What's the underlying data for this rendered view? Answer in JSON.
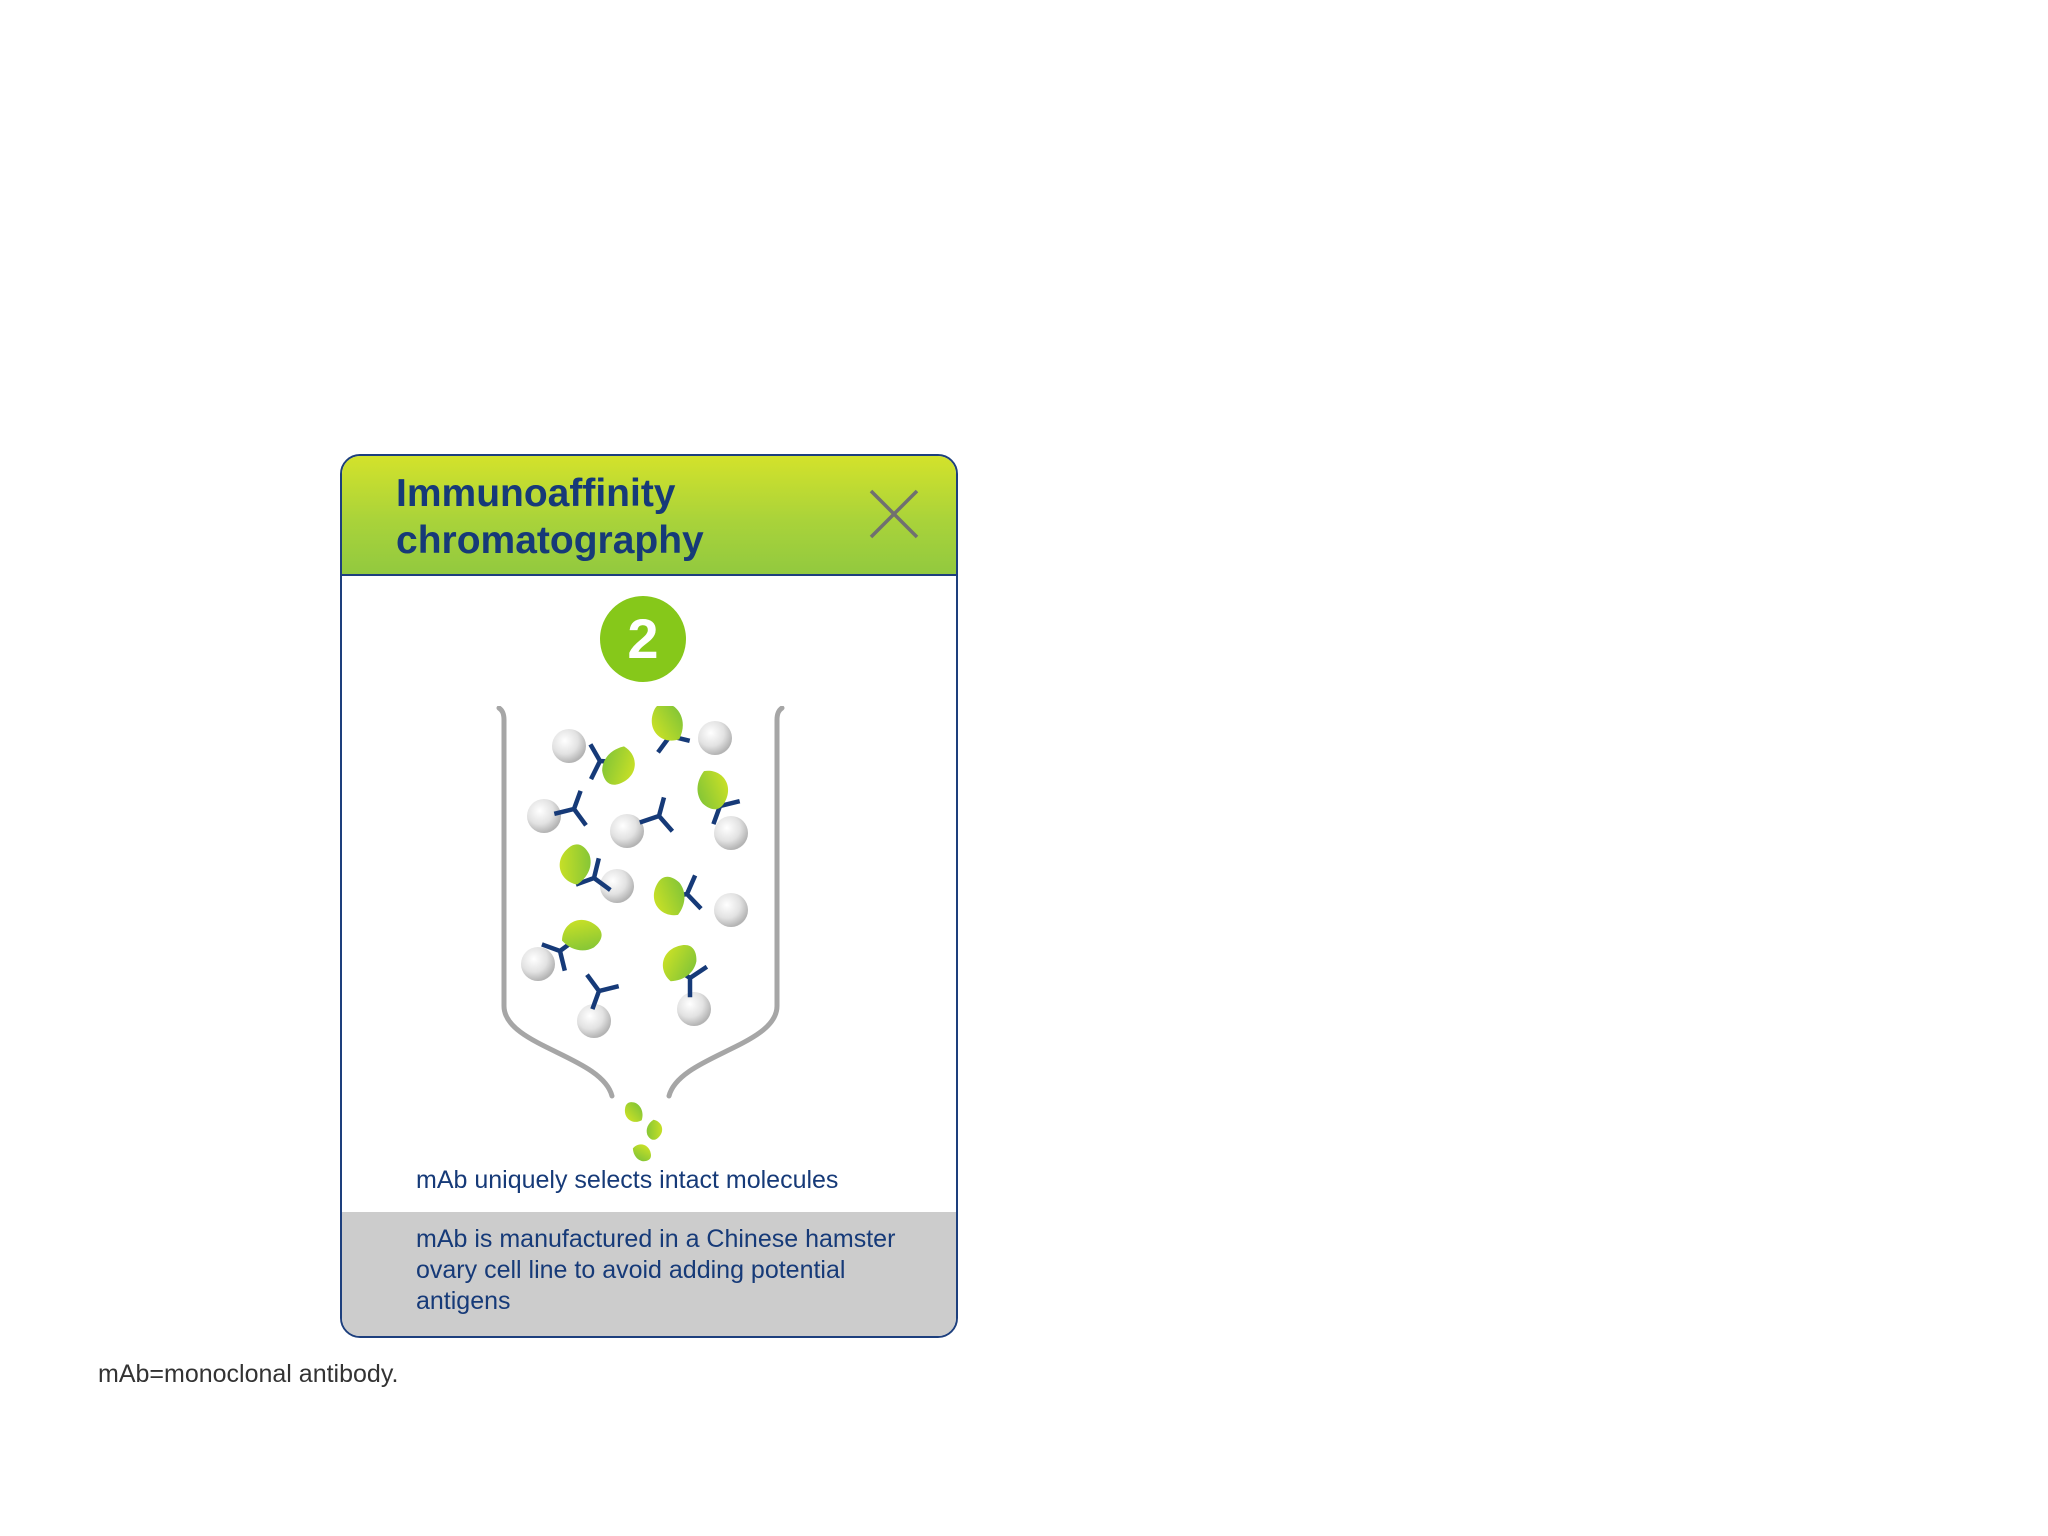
{
  "card": {
    "title": "Immunoaffinity\nchromatography",
    "step_number": "2",
    "close_icon": "close-icon",
    "caption": "mAb uniquely selects intact molecules",
    "footer_text": "mAb is manufactured in a Chinese hamster ovary cell line to avoid adding potential antigens",
    "colors": {
      "header_green": "#a9d33a",
      "badge_green": "#86c81a",
      "navy": "#163a78",
      "footer_gray": "#cccccc"
    }
  },
  "diagram": {
    "icons": [
      "column-icon",
      "antibody-icon",
      "bead-icon",
      "target-molecule-icon"
    ]
  },
  "footnote": "mAb=monoclonal antibody."
}
